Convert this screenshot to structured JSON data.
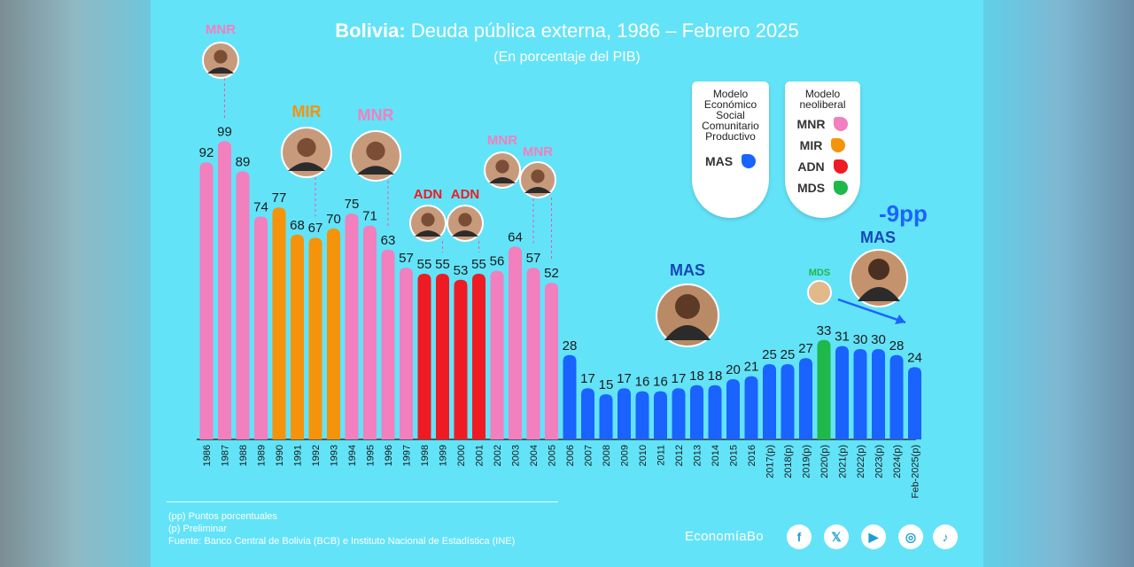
{
  "title": {
    "bold": "Bolivia:",
    "rest": "Deuda pública externa, 1986 – Febrero 2025"
  },
  "subtitle": "(En porcentaje del PIB)",
  "legend": {
    "left": {
      "title": "Modelo Económico Social Comunitario Productivo",
      "items": [
        {
          "label": "MAS",
          "color": "#1a63ff"
        }
      ]
    },
    "right": {
      "title": "Modelo neoliberal",
      "items": [
        {
          "label": "MNR",
          "color": "#f27fbe"
        },
        {
          "label": "MIR",
          "color": "#f5930a"
        },
        {
          "label": "ADN",
          "color": "#ee1b24"
        },
        {
          "label": "MDS",
          "color": "#1fb84b"
        }
      ]
    }
  },
  "party_labels": [
    {
      "text": "MNR",
      "color": "#f27fbe"
    },
    {
      "text": "MIR",
      "color": "#f5930a"
    },
    {
      "text": "MNR",
      "color": "#f27fbe"
    },
    {
      "text": "ADN",
      "color": "#ee1b24"
    },
    {
      "text": "ADN",
      "color": "#ee1b24"
    },
    {
      "text": "MNR",
      "color": "#f27fbe"
    },
    {
      "text": "MNR",
      "color": "#f27fbe"
    },
    {
      "text": "MAS",
      "color": "#1446b8"
    },
    {
      "text": "MDS",
      "color": "#1fb84b"
    },
    {
      "text": "MAS",
      "color": "#1446b8"
    }
  ],
  "change_label": "-9pp",
  "footnotes": [
    "(pp) Puntos porcentuales",
    "(p) Preliminar",
    "Fuente: Banco Central de Bolivia (BCB) e Instituto Nacional de Estadística (INE)"
  ],
  "brand": "EconomíaBo",
  "social": [
    {
      "icon": "facebook-icon",
      "glyph": "f"
    },
    {
      "icon": "x-icon",
      "glyph": "𝕏"
    },
    {
      "icon": "youtube-icon",
      "glyph": "▶"
    },
    {
      "icon": "instagram-icon",
      "glyph": "◎"
    },
    {
      "icon": "tiktok-icon",
      "glyph": "♪"
    }
  ],
  "chart_data": {
    "type": "bar",
    "title": "Bolivia: Deuda pública externa, 1986 – Febrero 2025",
    "ylabel": "En porcentaje del PIB",
    "ylim": [
      0,
      100
    ],
    "categories": [
      "1986",
      "1987",
      "1988",
      "1989",
      "1990",
      "1991",
      "1992",
      "1993",
      "1994",
      "1995",
      "1996",
      "1997",
      "1998",
      "1999",
      "2000",
      "2001",
      "2002",
      "2003",
      "2004",
      "2005",
      "2006",
      "2007",
      "2008",
      "2009",
      "2010",
      "2011",
      "2012",
      "2013",
      "2014",
      "2015",
      "2016",
      "2017(p)",
      "2018(p)",
      "2019(p)",
      "2020(p)",
      "2021(p)",
      "2022(p)",
      "2023(p)",
      "2024(p)",
      "Feb-2025(p)"
    ],
    "values": [
      92,
      99,
      89,
      74,
      77,
      68,
      67,
      70,
      75,
      71,
      63,
      57,
      55,
      55,
      53,
      55,
      56,
      64,
      57,
      52,
      28,
      17,
      15,
      17,
      16,
      16,
      17,
      18,
      18,
      20,
      21,
      25,
      25,
      27,
      33,
      31,
      30,
      30,
      28,
      24
    ],
    "parties": [
      "MNR",
      "MNR",
      "MNR",
      "MNR",
      "MIR",
      "MIR",
      "MIR",
      "MIR",
      "MNR",
      "MNR",
      "MNR",
      "MNR",
      "ADN",
      "ADN",
      "ADN",
      "ADN",
      "MNR",
      "MNR",
      "MNR",
      "MNR",
      "MAS",
      "MAS",
      "MAS",
      "MAS",
      "MAS",
      "MAS",
      "MAS",
      "MAS",
      "MAS",
      "MAS",
      "MAS",
      "MAS",
      "MAS",
      "MAS",
      "MDS",
      "MAS",
      "MAS",
      "MAS",
      "MAS",
      "MAS"
    ],
    "colors": {
      "MNR": "#f27fbe",
      "MIR": "#f5930a",
      "ADN": "#ee1b24",
      "MAS": "#1a63ff",
      "MDS": "#1fb84b"
    }
  }
}
